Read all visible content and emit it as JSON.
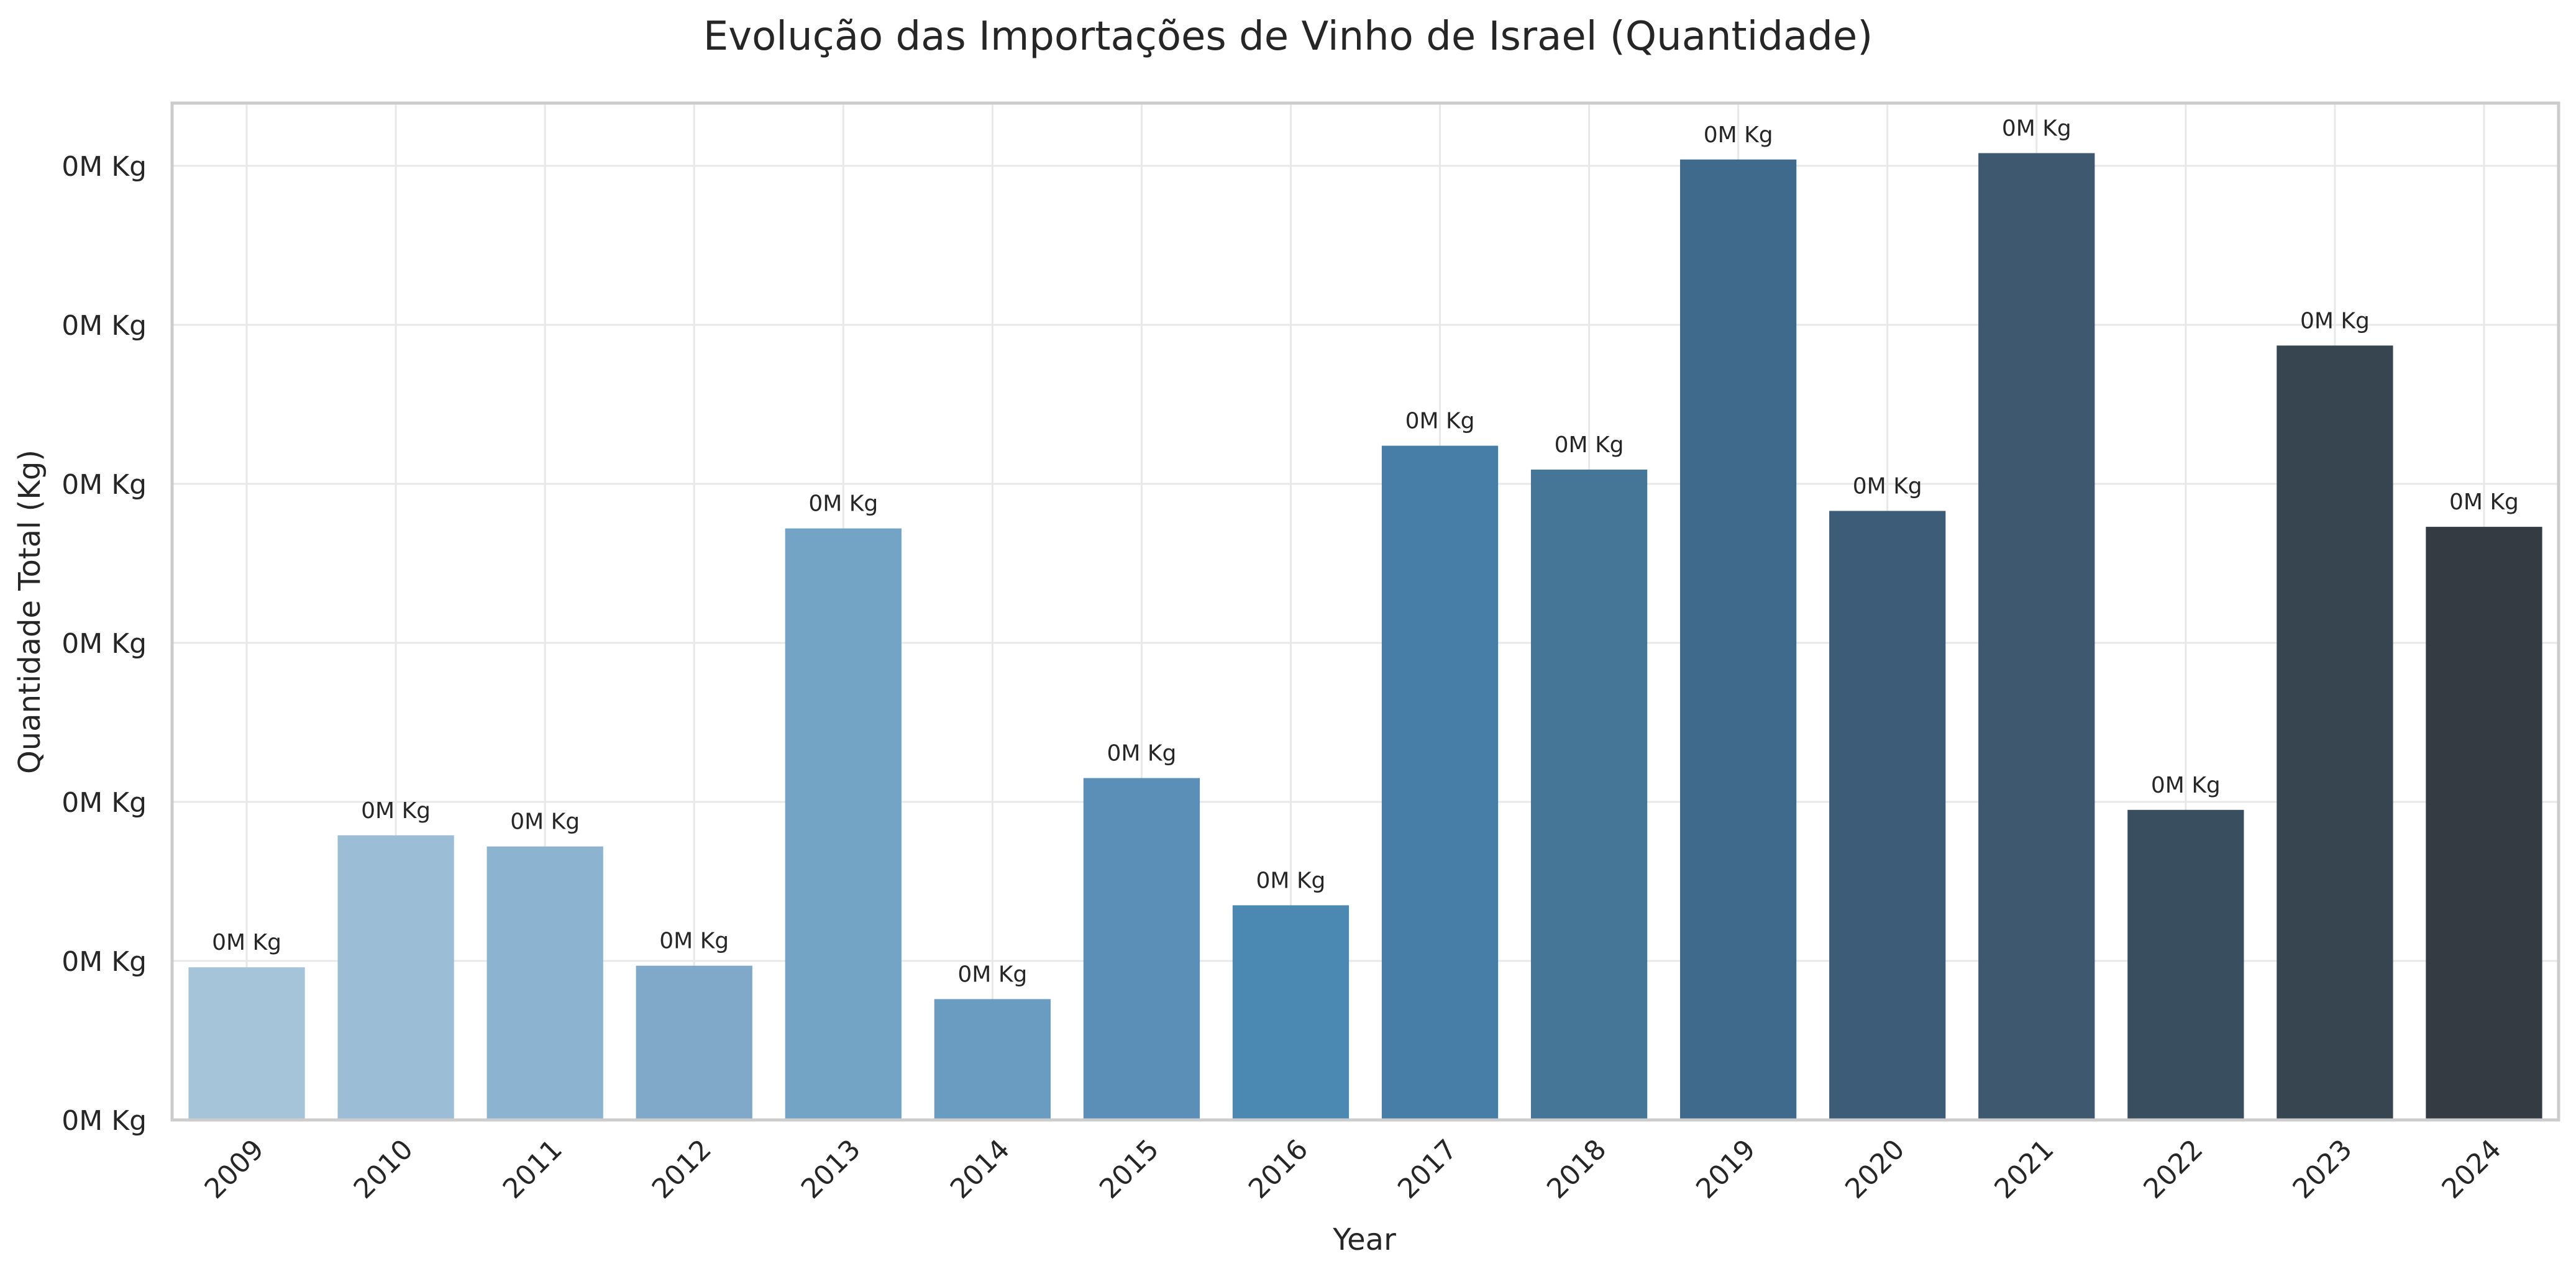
{
  "chart_data": {
    "type": "bar",
    "title": "Evolução das Importações de Vinho de Israel (Quantidade)",
    "xlabel": "Year",
    "ylabel": "Quantidade Total (Kg)",
    "categories": [
      "2009",
      "2010",
      "2011",
      "2012",
      "2013",
      "2014",
      "2015",
      "2016",
      "2017",
      "2018",
      "2019",
      "2020",
      "2021",
      "2022",
      "2023",
      "2024"
    ],
    "values": [
      96,
      179,
      172,
      97,
      372,
      76,
      215,
      135,
      424,
      409,
      604,
      383,
      608,
      195,
      487,
      373
    ],
    "value_labels": [
      "0M Kg",
      "0M Kg",
      "0M Kg",
      "0M Kg",
      "0M Kg",
      "0M Kg",
      "0M Kg",
      "0M Kg",
      "0M Kg",
      "0M Kg",
      "0M Kg",
      "0M Kg",
      "0M Kg",
      "0M Kg",
      "0M Kg",
      "0M Kg"
    ],
    "y_ticks": [
      0,
      100,
      200,
      300,
      400,
      500,
      600
    ],
    "y_tick_labels": [
      "0M Kg",
      "0M Kg",
      "0M Kg",
      "0M Kg",
      "0M Kg",
      "0M Kg",
      "0M Kg"
    ],
    "ylim": [
      0,
      640
    ],
    "grid": true,
    "legend": "none",
    "colors": [
      "#a5c4da",
      "#9bbdd5",
      "#8cb3cf",
      "#7fa8c9",
      "#73a4c6",
      "#6a9bc1",
      "#5b8fb7",
      "#4b89b3",
      "#467ea8",
      "#457697",
      "#3f6a8b",
      "#3d5c78",
      "#3e5870",
      "#394f5f",
      "#36454f",
      "#343b43"
    ]
  }
}
